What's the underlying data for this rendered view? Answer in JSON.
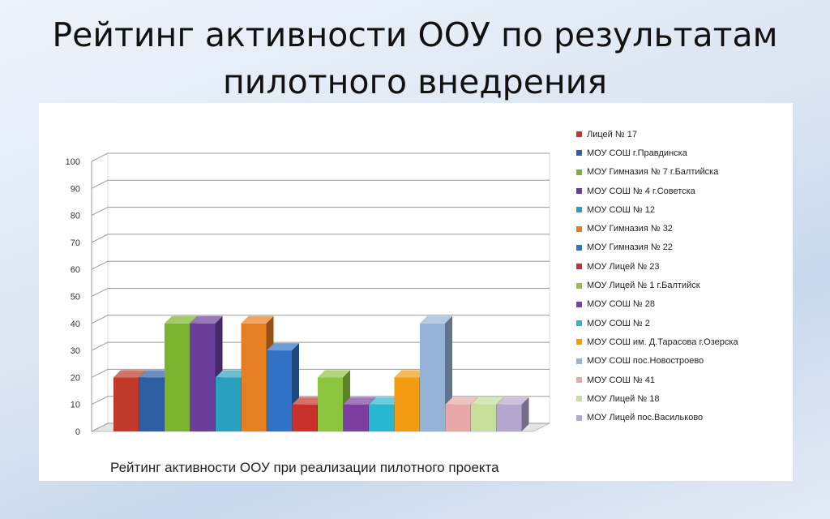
{
  "slide": {
    "title_line1": "Рейтинг активности ООУ по результатам",
    "title_line2": "пилотного внедрения"
  },
  "chart_data": {
    "type": "bar",
    "subtype": "3d-clustered-column",
    "title": "",
    "caption": "Рейтинг активности ООУ при реализации пилотного проекта",
    "xlabel": "",
    "ylabel": "",
    "ylim": [
      0,
      100
    ],
    "y_ticks": [
      0,
      10,
      20,
      30,
      40,
      50,
      60,
      70,
      80,
      90,
      100
    ],
    "grid": true,
    "legend_position": "right",
    "series": [
      {
        "name": "Лицей № 17",
        "value": 20,
        "color": "#c0392b"
      },
      {
        "name": "МОУ СОШ г.Правдинска",
        "value": 20,
        "color": "#2e5fa3"
      },
      {
        "name": "МОУ Гимназия № 7 г.Балтийска",
        "value": 40,
        "color": "#7ab32e"
      },
      {
        "name": "МОУ СОШ № 4 г.Советска",
        "value": 40,
        "color": "#6a3d9a"
      },
      {
        "name": "МОУ СОШ № 12",
        "value": 20,
        "color": "#2aa0bf"
      },
      {
        "name": "МОУ Гимназия № 32",
        "value": 40,
        "color": "#e67e22"
      },
      {
        "name": "МОУ Гимназия № 22",
        "value": 30,
        "color": "#2f72c6"
      },
      {
        "name": "МОУ Лицей № 23",
        "value": 10,
        "color": "#c9302c"
      },
      {
        "name": "МОУ Лицей № 1 г.Балтийск",
        "value": 20,
        "color": "#8cc63f"
      },
      {
        "name": "МОУ СОШ № 28",
        "value": 10,
        "color": "#7b3fa0"
      },
      {
        "name": "МОУ СОШ № 2",
        "value": 10,
        "color": "#29b6d1"
      },
      {
        "name": "МОУ СОШ им. Д.Тарасова  г.Озерска",
        "value": 20,
        "color": "#f39c12"
      },
      {
        "name": "МОУ СОШ пос.Новостроево",
        "value": 40,
        "color": "#95b3d7"
      },
      {
        "name": "МОУ СОШ № 41",
        "value": 10,
        "color": "#e6a8a8"
      },
      {
        "name": "МОУ Лицей № 18",
        "value": 10,
        "color": "#c5de9a"
      },
      {
        "name": "МОУ Лицей пос.Васильково",
        "value": 10,
        "color": "#b4a7cf"
      }
    ]
  }
}
